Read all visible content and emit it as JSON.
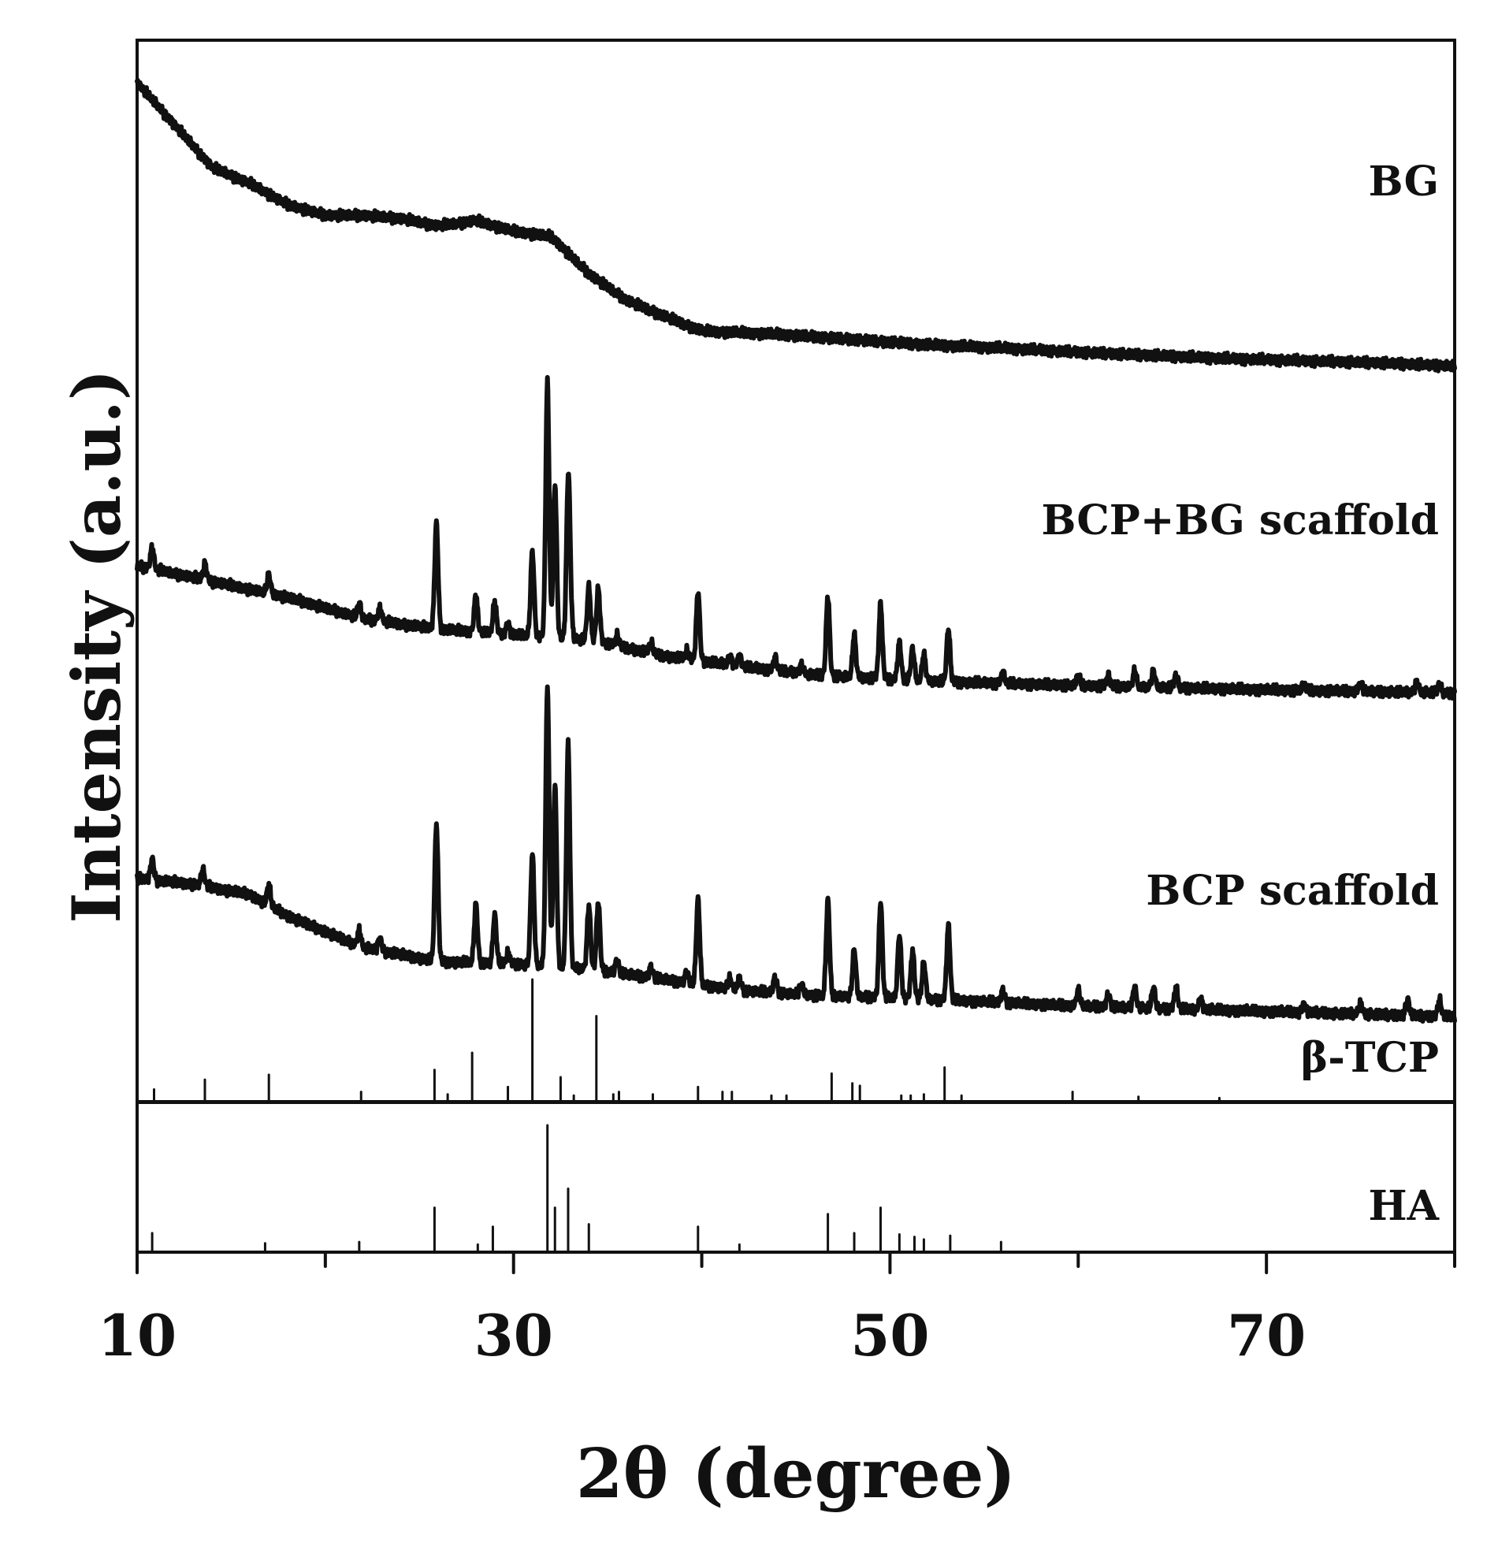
{
  "chart_data": {
    "type": "line",
    "xlabel": "2θ (degree)",
    "ylabel": "Intensity (a.u.)",
    "xlim": [
      10,
      80
    ],
    "xticks": [
      10,
      30,
      50,
      70
    ],
    "minor_tick_step": 10,
    "grid": false,
    "series": [
      {
        "name": "BG",
        "kind": "baseline",
        "baseline": [
          [
            10,
            96
          ],
          [
            12,
            92
          ],
          [
            14,
            88
          ],
          [
            16,
            86.5
          ],
          [
            18,
            84.5
          ],
          [
            20,
            83.5
          ],
          [
            22,
            83.5
          ],
          [
            24,
            83.2
          ],
          [
            26,
            82.5
          ],
          [
            28,
            83
          ],
          [
            30,
            82
          ],
          [
            32,
            81.5
          ],
          [
            34,
            78
          ],
          [
            36,
            75.5
          ],
          [
            38,
            74
          ],
          [
            40,
            72.6
          ],
          [
            44,
            72.3
          ],
          [
            48,
            71.8
          ],
          [
            52,
            71.3
          ],
          [
            56,
            71
          ],
          [
            60,
            70.6
          ],
          [
            64,
            70.3
          ],
          [
            68,
            70
          ],
          [
            72,
            69.8
          ],
          [
            76,
            69.6
          ],
          [
            80,
            69.3
          ]
        ]
      },
      {
        "name": "BCP+BG scaffold",
        "kind": "peaks",
        "baseline": [
          [
            10,
            50.5
          ],
          [
            14,
            49
          ],
          [
            18,
            47.5
          ],
          [
            22,
            45.5
          ],
          [
            26,
            44.5
          ],
          [
            30,
            44
          ],
          [
            34,
            43.5
          ],
          [
            38,
            42
          ],
          [
            42,
            41
          ],
          [
            46,
            40.2
          ],
          [
            50,
            39.8
          ],
          [
            54,
            39.5
          ],
          [
            60,
            39.2
          ],
          [
            70,
            38.8
          ],
          [
            80,
            38.5
          ]
        ],
        "peaks": [
          [
            10.8,
            2
          ],
          [
            13.6,
            1.5
          ],
          [
            17,
            1.8
          ],
          [
            21.8,
            1.4
          ],
          [
            22.9,
            1.2
          ],
          [
            25.9,
            10
          ],
          [
            28,
            3.5
          ],
          [
            29,
            3
          ],
          [
            29.7,
            1
          ],
          [
            31,
            8
          ],
          [
            31.8,
            24
          ],
          [
            32.2,
            14.5
          ],
          [
            32.9,
            14
          ],
          [
            33,
            3
          ],
          [
            34,
            5
          ],
          [
            34.5,
            5
          ],
          [
            35.5,
            1
          ],
          [
            37.3,
            1
          ],
          [
            39.2,
            0.8
          ],
          [
            39.8,
            6.5
          ],
          [
            41.5,
            0.8
          ],
          [
            42,
            1
          ],
          [
            43.9,
            1.2
          ],
          [
            45.3,
            0.8
          ],
          [
            46.7,
            7.5
          ],
          [
            48.1,
            4
          ],
          [
            49.5,
            7
          ],
          [
            50.5,
            3.5
          ],
          [
            51.2,
            3
          ],
          [
            51.8,
            2.5
          ],
          [
            53.1,
            5
          ],
          [
            56,
            1
          ],
          [
            60,
            1
          ],
          [
            61.6,
            1
          ],
          [
            63,
            1.5
          ],
          [
            64,
            1.5
          ],
          [
            65.2,
            1.2
          ],
          [
            72,
            0.5
          ],
          [
            75,
            0.8
          ],
          [
            78,
            1
          ],
          [
            79.2,
            0.8
          ]
        ]
      },
      {
        "name": "BCP scaffold",
        "kind": "peaks",
        "baseline": [
          [
            10,
            21
          ],
          [
            13,
            20.5
          ],
          [
            16,
            19.5
          ],
          [
            18,
            17.5
          ],
          [
            20,
            16
          ],
          [
            22,
            14.5
          ],
          [
            26,
            13.2
          ],
          [
            30,
            13
          ],
          [
            34,
            12.5
          ],
          [
            38,
            11.5
          ],
          [
            42,
            10.5
          ],
          [
            46,
            10
          ],
          [
            50,
            9.8
          ],
          [
            54,
            9.5
          ],
          [
            60,
            9
          ],
          [
            70,
            8.5
          ],
          [
            80,
            8
          ]
        ],
        "peaks": [
          [
            10.8,
            2
          ],
          [
            13.5,
            1.5
          ],
          [
            17,
            2
          ],
          [
            21.8,
            1.5
          ],
          [
            22.9,
            1.2
          ],
          [
            25.9,
            13
          ],
          [
            28,
            5.5
          ],
          [
            29,
            4.5
          ],
          [
            29.7,
            1
          ],
          [
            31,
            10.5
          ],
          [
            31.8,
            26.5
          ],
          [
            32.2,
            17
          ],
          [
            32.9,
            21
          ],
          [
            34,
            6
          ],
          [
            34.5,
            6.5
          ],
          [
            35.5,
            1.2
          ],
          [
            37.3,
            1
          ],
          [
            39.2,
            1
          ],
          [
            39.8,
            8
          ],
          [
            41.5,
            1
          ],
          [
            42,
            1.2
          ],
          [
            43.9,
            1.5
          ],
          [
            45.3,
            1
          ],
          [
            46.7,
            9
          ],
          [
            48.1,
            4.5
          ],
          [
            49.5,
            9
          ],
          [
            50.5,
            6
          ],
          [
            51.2,
            4.5
          ],
          [
            51.8,
            3.5
          ],
          [
            53.1,
            7
          ],
          [
            56,
            1.2
          ],
          [
            60,
            1.5
          ],
          [
            61.6,
            1.2
          ],
          [
            63,
            2
          ],
          [
            64,
            2
          ],
          [
            65.2,
            2
          ],
          [
            66.5,
            1
          ],
          [
            72,
            0.8
          ],
          [
            75,
            1
          ],
          [
            77.5,
            1.5
          ],
          [
            79.2,
            1.5
          ]
        ]
      },
      {
        "name": "β-TCP",
        "kind": "reference",
        "sticks": [
          [
            10.9,
            1
          ],
          [
            13.6,
            1.8
          ],
          [
            17,
            2.2
          ],
          [
            21.9,
            0.8
          ],
          [
            25.8,
            2.6
          ],
          [
            26.5,
            0.6
          ],
          [
            27.8,
            4
          ],
          [
            29.7,
            1.2
          ],
          [
            31,
            10
          ],
          [
            32.5,
            2
          ],
          [
            33.2,
            0.5
          ],
          [
            34.4,
            7
          ],
          [
            35.3,
            0.6
          ],
          [
            35.6,
            0.8
          ],
          [
            37.4,
            0.6
          ],
          [
            39.8,
            1.2
          ],
          [
            41.1,
            0.8
          ],
          [
            41.6,
            0.8
          ],
          [
            43.7,
            0.5
          ],
          [
            44.5,
            0.5
          ],
          [
            46.9,
            2.3
          ],
          [
            48,
            1.5
          ],
          [
            48.4,
            1.3
          ],
          [
            50.6,
            0.5
          ],
          [
            51.1,
            0.5
          ],
          [
            51.8,
            0.6
          ],
          [
            52.9,
            2.8
          ],
          [
            53.8,
            0.5
          ],
          [
            59.7,
            0.8
          ],
          [
            63.2,
            0.4
          ],
          [
            67.5,
            0.3
          ]
        ]
      },
      {
        "name": "HA",
        "kind": "reference",
        "sticks": [
          [
            10.8,
            1.5
          ],
          [
            16.8,
            0.7
          ],
          [
            21.8,
            0.8
          ],
          [
            25.8,
            3.5
          ],
          [
            28.1,
            0.6
          ],
          [
            28.9,
            2
          ],
          [
            31.8,
            10
          ],
          [
            32.2,
            3.5
          ],
          [
            32.9,
            5
          ],
          [
            34,
            2.2
          ],
          [
            39.8,
            2
          ],
          [
            42,
            0.6
          ],
          [
            46.7,
            3
          ],
          [
            48.1,
            1.5
          ],
          [
            49.5,
            3.5
          ],
          [
            50.5,
            1.4
          ],
          [
            51.3,
            1.2
          ],
          [
            51.8,
            1
          ],
          [
            53.2,
            1.3
          ],
          [
            55.9,
            0.8
          ]
        ]
      }
    ]
  }
}
